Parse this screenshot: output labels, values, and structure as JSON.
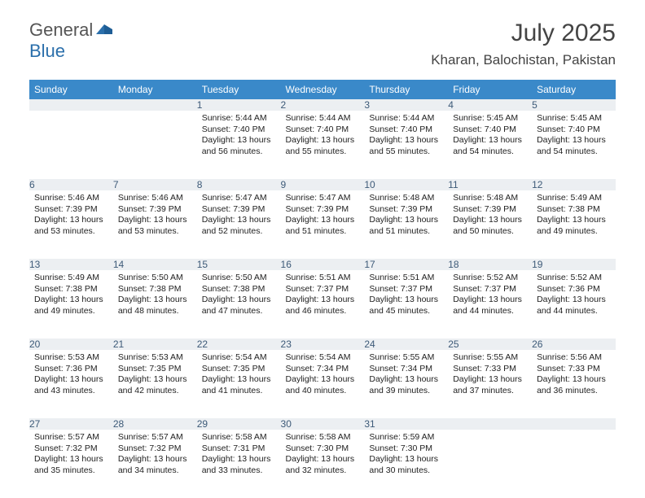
{
  "logo": {
    "general": "General",
    "blue": "Blue"
  },
  "title": "July 2025",
  "location": "Kharan, Balochistan, Pakistan",
  "colors": {
    "header_bg": "#3a89c9",
    "header_fg": "#ffffff",
    "daynum_bg": "#eceff2",
    "daynum_fg": "#3d5a78",
    "rule": "#2c5a86",
    "logo_blue": "#2b6fab"
  },
  "weekdays": [
    "Sunday",
    "Monday",
    "Tuesday",
    "Wednesday",
    "Thursday",
    "Friday",
    "Saturday"
  ],
  "weeks": [
    [
      null,
      null,
      {
        "n": "1",
        "sr": "5:44 AM",
        "ss": "7:40 PM",
        "dl": "13 hours and 56 minutes."
      },
      {
        "n": "2",
        "sr": "5:44 AM",
        "ss": "7:40 PM",
        "dl": "13 hours and 55 minutes."
      },
      {
        "n": "3",
        "sr": "5:44 AM",
        "ss": "7:40 PM",
        "dl": "13 hours and 55 minutes."
      },
      {
        "n": "4",
        "sr": "5:45 AM",
        "ss": "7:40 PM",
        "dl": "13 hours and 54 minutes."
      },
      {
        "n": "5",
        "sr": "5:45 AM",
        "ss": "7:40 PM",
        "dl": "13 hours and 54 minutes."
      }
    ],
    [
      {
        "n": "6",
        "sr": "5:46 AM",
        "ss": "7:39 PM",
        "dl": "13 hours and 53 minutes."
      },
      {
        "n": "7",
        "sr": "5:46 AM",
        "ss": "7:39 PM",
        "dl": "13 hours and 53 minutes."
      },
      {
        "n": "8",
        "sr": "5:47 AM",
        "ss": "7:39 PM",
        "dl": "13 hours and 52 minutes."
      },
      {
        "n": "9",
        "sr": "5:47 AM",
        "ss": "7:39 PM",
        "dl": "13 hours and 51 minutes."
      },
      {
        "n": "10",
        "sr": "5:48 AM",
        "ss": "7:39 PM",
        "dl": "13 hours and 51 minutes."
      },
      {
        "n": "11",
        "sr": "5:48 AM",
        "ss": "7:39 PM",
        "dl": "13 hours and 50 minutes."
      },
      {
        "n": "12",
        "sr": "5:49 AM",
        "ss": "7:38 PM",
        "dl": "13 hours and 49 minutes."
      }
    ],
    [
      {
        "n": "13",
        "sr": "5:49 AM",
        "ss": "7:38 PM",
        "dl": "13 hours and 49 minutes."
      },
      {
        "n": "14",
        "sr": "5:50 AM",
        "ss": "7:38 PM",
        "dl": "13 hours and 48 minutes."
      },
      {
        "n": "15",
        "sr": "5:50 AM",
        "ss": "7:38 PM",
        "dl": "13 hours and 47 minutes."
      },
      {
        "n": "16",
        "sr": "5:51 AM",
        "ss": "7:37 PM",
        "dl": "13 hours and 46 minutes."
      },
      {
        "n": "17",
        "sr": "5:51 AM",
        "ss": "7:37 PM",
        "dl": "13 hours and 45 minutes."
      },
      {
        "n": "18",
        "sr": "5:52 AM",
        "ss": "7:37 PM",
        "dl": "13 hours and 44 minutes."
      },
      {
        "n": "19",
        "sr": "5:52 AM",
        "ss": "7:36 PM",
        "dl": "13 hours and 44 minutes."
      }
    ],
    [
      {
        "n": "20",
        "sr": "5:53 AM",
        "ss": "7:36 PM",
        "dl": "13 hours and 43 minutes."
      },
      {
        "n": "21",
        "sr": "5:53 AM",
        "ss": "7:35 PM",
        "dl": "13 hours and 42 minutes."
      },
      {
        "n": "22",
        "sr": "5:54 AM",
        "ss": "7:35 PM",
        "dl": "13 hours and 41 minutes."
      },
      {
        "n": "23",
        "sr": "5:54 AM",
        "ss": "7:34 PM",
        "dl": "13 hours and 40 minutes."
      },
      {
        "n": "24",
        "sr": "5:55 AM",
        "ss": "7:34 PM",
        "dl": "13 hours and 39 minutes."
      },
      {
        "n": "25",
        "sr": "5:55 AM",
        "ss": "7:33 PM",
        "dl": "13 hours and 37 minutes."
      },
      {
        "n": "26",
        "sr": "5:56 AM",
        "ss": "7:33 PM",
        "dl": "13 hours and 36 minutes."
      }
    ],
    [
      {
        "n": "27",
        "sr": "5:57 AM",
        "ss": "7:32 PM",
        "dl": "13 hours and 35 minutes."
      },
      {
        "n": "28",
        "sr": "5:57 AM",
        "ss": "7:32 PM",
        "dl": "13 hours and 34 minutes."
      },
      {
        "n": "29",
        "sr": "5:58 AM",
        "ss": "7:31 PM",
        "dl": "13 hours and 33 minutes."
      },
      {
        "n": "30",
        "sr": "5:58 AM",
        "ss": "7:30 PM",
        "dl": "13 hours and 32 minutes."
      },
      {
        "n": "31",
        "sr": "5:59 AM",
        "ss": "7:30 PM",
        "dl": "13 hours and 30 minutes."
      },
      null,
      null
    ]
  ],
  "labels": {
    "sunrise": "Sunrise:",
    "sunset": "Sunset:",
    "daylight": "Daylight:"
  }
}
